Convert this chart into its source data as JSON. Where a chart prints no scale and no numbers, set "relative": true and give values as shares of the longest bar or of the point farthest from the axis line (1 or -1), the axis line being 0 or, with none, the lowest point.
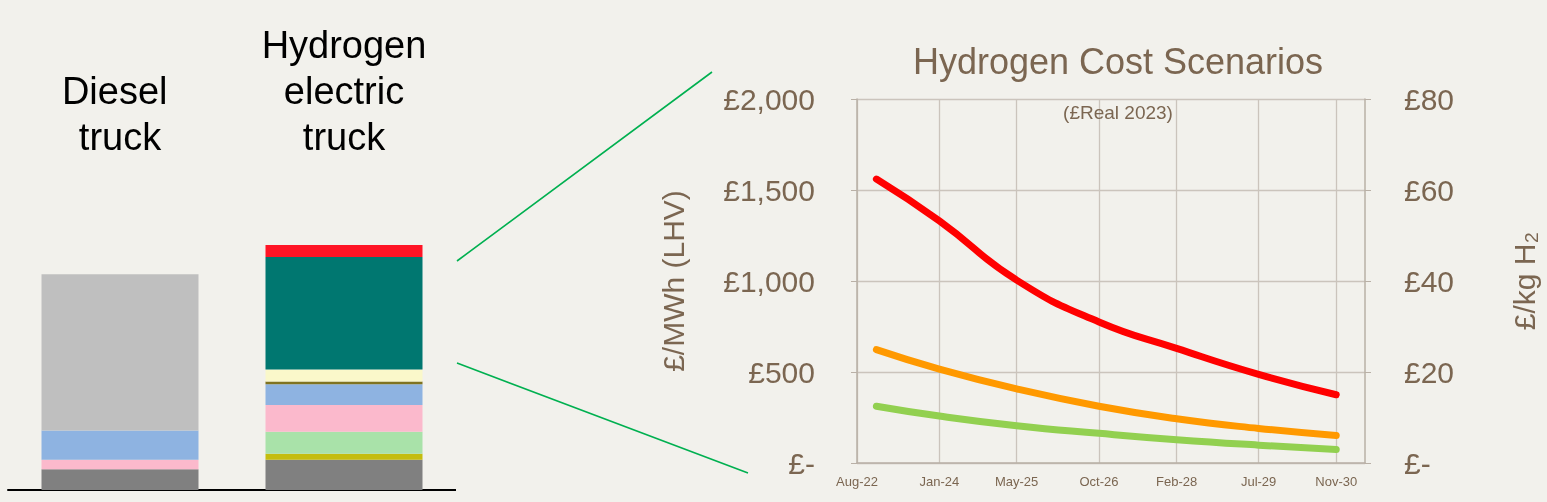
{
  "chart_data": [
    {
      "type": "bar",
      "stacked": true,
      "relative": true,
      "categories": [
        "Diesel truck",
        "Hydrogen electric truck"
      ],
      "series": [
        {
          "color": "#808080",
          "values": [
            0.085,
            0.123
          ]
        },
        {
          "color": "#c4bd0e",
          "values": [
            null,
            0.025
          ]
        },
        {
          "color": "#a9e2a9",
          "values": [
            null,
            0.09
          ]
        },
        {
          "color": "#fbb9cc",
          "values": [
            0.038,
            0.109
          ]
        },
        {
          "color": "#8eb3e1",
          "values": [
            0.12,
            0.085
          ]
        },
        {
          "color": "#7f7320",
          "values": [
            null,
            0.011
          ]
        },
        {
          "color": "#faf8ca",
          "values": [
            null,
            0.049
          ]
        },
        {
          "color": "#bfbfbf",
          "values": [
            0.638,
            null
          ]
        },
        {
          "color": "#007770",
          "values": [
            null,
            0.459
          ]
        },
        {
          "color": "#ff1425",
          "values": [
            null,
            0.049
          ]
        }
      ]
    },
    {
      "type": "line",
      "title": "Hydrogen Cost Scenarios",
      "subtitle": "(£Real 2023)",
      "ylabel": "£/MWh (LHV)",
      "y2label": "£/kg H₂",
      "x": [
        "2022-12",
        "2024-01",
        "2025-05",
        "2026-10",
        "2028-02",
        "2029-07",
        "2030-11"
      ],
      "series": [
        {
          "color": "#ff0000",
          "values": [
            1560,
            1330,
            1005,
            775,
            630,
            487,
            375
          ]
        },
        {
          "color": "#ff9900",
          "values": [
            623,
            516,
            407,
            312,
            243,
            190,
            151
          ]
        },
        {
          "color": "#92d050",
          "values": [
            312,
            258,
            205,
            163,
            128,
            98,
            74
          ]
        }
      ],
      "xlim": [
        "2022-08",
        "2031-05"
      ],
      "xticks": [
        {
          "value": "2022-08",
          "label": "Aug-22"
        },
        {
          "value": "2024-01",
          "label": "Jan-24"
        },
        {
          "value": "2025-05",
          "label": "May-25"
        },
        {
          "value": "2026-10",
          "label": "Oct-26"
        },
        {
          "value": "2028-02",
          "label": "Feb-28"
        },
        {
          "value": "2029-07",
          "label": "Jul-29"
        },
        {
          "value": "2030-11",
          "label": "Nov-30"
        }
      ],
      "ylim": [
        0,
        2000
      ],
      "yticks": [
        {
          "value": 0,
          "label": "£-"
        },
        {
          "value": 500,
          "label": "£500"
        },
        {
          "value": 1000,
          "label": "£1,000"
        },
        {
          "value": 1500,
          "label": "£1,500"
        },
        {
          "value": 2000,
          "label": "£2,000"
        }
      ],
      "y2lim": [
        0,
        80
      ],
      "y2ticks": [
        {
          "value": 0,
          "label": "£-"
        },
        {
          "value": 20,
          "label": "£20"
        },
        {
          "value": 40,
          "label": "£40"
        },
        {
          "value": 60,
          "label": "£60"
        },
        {
          "value": 80,
          "label": "£80"
        }
      ],
      "grid": true,
      "marker": "none"
    }
  ]
}
